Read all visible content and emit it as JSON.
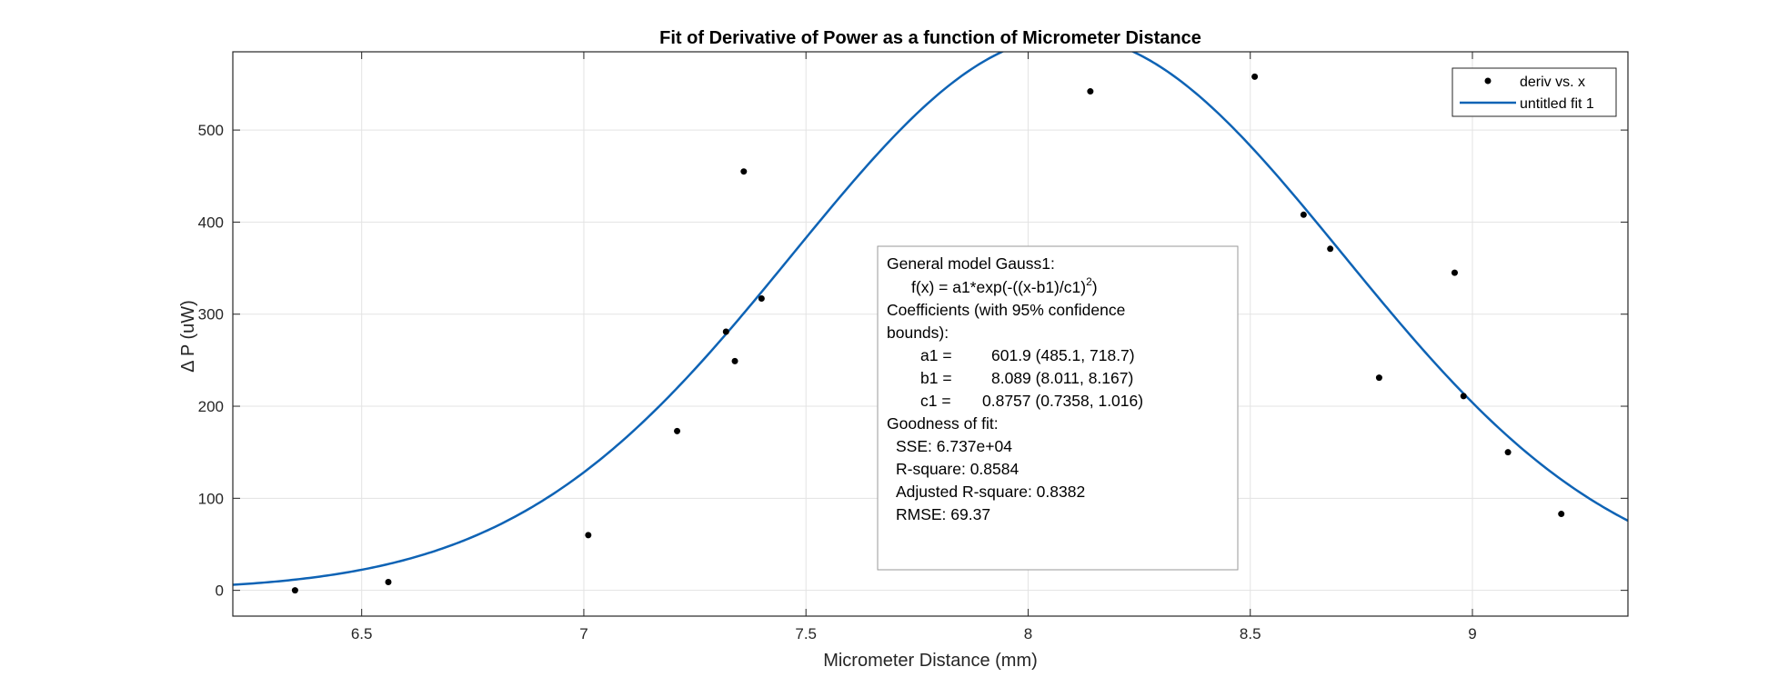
{
  "chart_data": {
    "type": "scatter",
    "title": "Fit of Derivative of Power as a function of Micrometer Distance",
    "xlabel": "Micrometer Distance (mm)",
    "ylabel": "Δ P (uW)",
    "xlim": [
      6.21,
      9.35
    ],
    "ylim": [
      -28,
      585
    ],
    "xticks": [
      6.5,
      7,
      7.5,
      8,
      8.5,
      9
    ],
    "xtick_labels": [
      "6.5",
      "7",
      "7.5",
      "8",
      "8.5",
      "9"
    ],
    "yticks": [
      0,
      100,
      200,
      300,
      400,
      500
    ],
    "ytick_labels": [
      "0",
      "100",
      "200",
      "300",
      "400",
      "500"
    ],
    "grid": true,
    "legend_position": "top-right",
    "series": [
      {
        "name": "deriv vs. x",
        "kind": "scatter",
        "color": "#000000",
        "x": [
          6.35,
          6.56,
          7.01,
          7.21,
          7.32,
          7.34,
          7.36,
          7.4,
          8.14,
          8.51,
          8.62,
          8.68,
          8.79,
          8.96,
          8.98,
          9.08,
          9.2
        ],
        "y": [
          0,
          9,
          60,
          173,
          281,
          249,
          455,
          317,
          542,
          558,
          408,
          371,
          231,
          345,
          211,
          150,
          83
        ]
      },
      {
        "name": "untitled fit 1",
        "kind": "line",
        "color": "#0e63b5",
        "model": "gauss1",
        "params": {
          "a1": 601.9,
          "b1": 8.089,
          "c1": 0.8757
        }
      }
    ],
    "annotation": {
      "lines": [
        "General model Gauss1:",
        "f(x) =  a1*exp(-((x-b1)/c1)",
        ")",
        "Coefficients (with 95% confidence",
        "bounds):",
        "a1 =",
        "601.9  (485.1, 718.7)",
        "b1 =",
        "8.089  (8.011, 8.167)",
        "c1 =",
        "0.8757  (0.7358, 1.016)",
        "Goodness of fit:",
        "SSE: 6.737e+04",
        "R-square: 0.8584",
        "Adjusted R-square: 0.8382",
        "RMSE: 69.37"
      ],
      "superscript": "2"
    }
  }
}
